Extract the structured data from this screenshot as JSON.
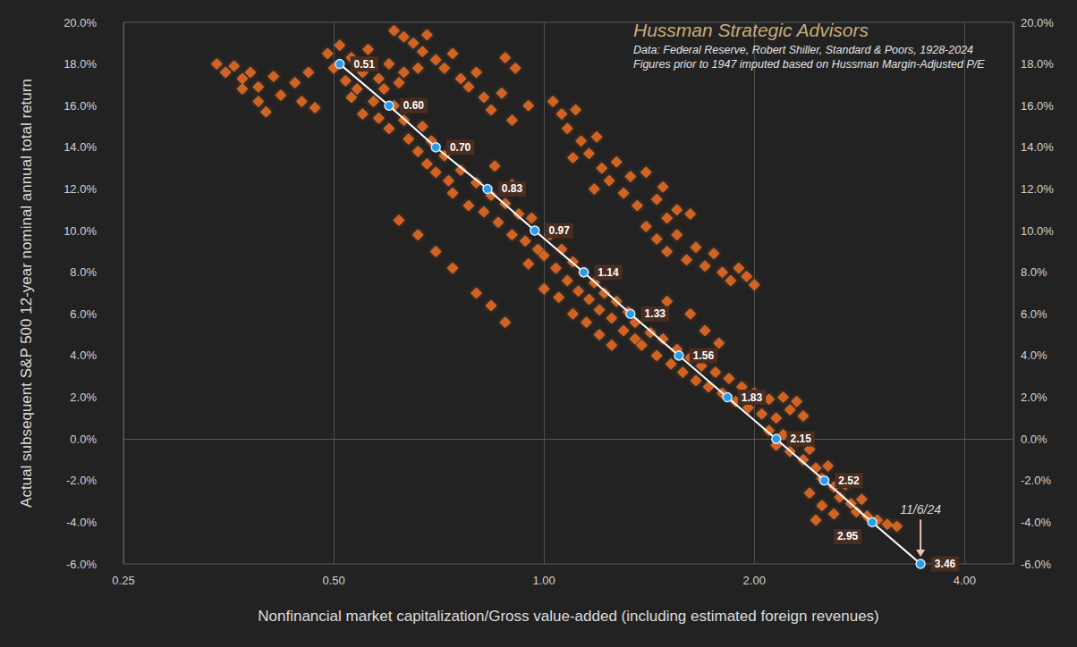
{
  "chart_data": {
    "type": "scatter",
    "title": "Hussman Strategic Advisors",
    "subtitle": [
      "Data: Federal Reserve, Robert Shiller, Standard & Poors, 1928-2024",
      "Figures prior to 1947 imputed based on Hussman Margin-Adjusted P/E"
    ],
    "x_label": "Nonfinancial market capitalization/Gross value-added (including estimated foreign revenues)",
    "y_label": "Actual subsequent S&P 500 12-year nominal annual total return",
    "log": "x",
    "grid": "x",
    "xlim": [
      0.25,
      4.7
    ],
    "xticks": [
      0.25,
      {
        "value": 0.5,
        "label": "0.50"
      },
      {
        "value": 1,
        "label": "1.00"
      },
      {
        "value": 2,
        "label": "2.00"
      },
      {
        "value": 4,
        "label": "4.00"
      }
    ],
    "ylim": [
      -6,
      20
    ],
    "yticks": [
      {
        "value": -6,
        "label": "-6.0%"
      },
      {
        "value": -4,
        "label": "-4.0%"
      },
      {
        "value": -2,
        "label": "-2.0%"
      },
      {
        "value": 0,
        "label": "0.0%"
      },
      {
        "value": 2,
        "label": "2.0%"
      },
      {
        "value": 4,
        "label": "4.0%"
      },
      {
        "value": 6,
        "label": "6.0%"
      },
      {
        "value": 8,
        "label": "8.0%"
      },
      {
        "value": 10,
        "label": "10.0%"
      },
      {
        "value": 12,
        "label": "12.0%"
      },
      {
        "value": 14,
        "label": "14.0%"
      },
      {
        "value": 16,
        "label": "16.0%"
      },
      {
        "value": 18,
        "label": "18.0%"
      },
      {
        "value": 20,
        "label": "20.0%"
      }
    ],
    "y2lim": [
      -6,
      20
    ],
    "y2ticks": [
      {
        "value": -6,
        "label": "-6.0%"
      },
      {
        "value": -4,
        "label": "-4.0%"
      },
      {
        "value": -2,
        "label": "-2.0%"
      },
      {
        "value": 0,
        "label": "0.0%"
      },
      {
        "value": 2,
        "label": "2.0%"
      },
      {
        "value": 4,
        "label": "4.0%"
      },
      {
        "value": 6,
        "label": "6.0%"
      },
      {
        "value": 8,
        "label": "8.0%"
      },
      {
        "value": 10,
        "label": "10.0%"
      },
      {
        "value": 12,
        "label": "12.0%"
      },
      {
        "value": 14,
        "label": "14.0%"
      },
      {
        "value": 16,
        "label": "16.0%"
      },
      {
        "value": 18,
        "label": "18.0%"
      },
      {
        "value": 20,
        "label": "20.0%"
      }
    ],
    "series": [
      {
        "type": "scatter",
        "color": "#f06a1e",
        "marker": "diamond",
        "x": [
          0.34,
          0.35,
          0.36,
          0.37,
          0.37,
          0.38,
          0.39,
          0.39,
          0.4,
          0.41,
          0.42,
          0.44,
          0.45,
          0.46,
          0.47,
          0.49,
          0.5,
          0.51,
          0.52,
          0.53,
          0.54,
          0.55,
          0.56,
          0.57,
          0.58,
          0.58,
          0.59,
          0.6,
          0.61,
          0.62,
          0.63,
          0.64,
          0.65,
          0.66,
          0.67,
          0.68,
          0.69,
          0.7,
          0.72,
          0.73,
          0.55,
          0.53,
          0.6,
          0.63,
          0.66,
          0.61,
          0.63,
          0.65,
          0.67,
          0.68,
          0.7,
          0.72,
          0.74,
          0.76,
          0.78,
          0.8,
          0.82,
          0.84,
          0.87,
          0.9,
          0.88,
          0.91,
          0.95,
          0.74,
          0.76,
          0.78,
          0.8,
          0.82,
          0.84,
          0.86,
          0.88,
          0.9,
          0.92,
          0.94,
          0.96,
          0.98,
          1.0,
          1.02,
          1.04,
          1.06,
          1.08,
          1.1,
          1.12,
          1.14,
          1.16,
          1.18,
          1.2,
          1.22,
          1.25,
          1.27,
          1.3,
          1.32,
          1.35,
          1.0,
          1.05,
          1.1,
          1.15,
          0.95,
          0.9,
          0.85,
          1.2,
          1.25,
          1.03,
          1.06,
          1.08,
          1.11,
          1.13,
          1.16,
          1.19,
          1.21,
          1.24,
          1.27,
          1.3,
          1.33,
          1.36,
          1.1,
          1.18,
          1.4,
          1.45,
          1.5,
          1.55,
          1.6,
          1.65,
          1.7,
          1.75,
          1.8,
          1.85,
          1.9,
          1.95,
          2.0,
          1.5,
          1.45,
          1.55,
          1.4,
          1.48,
          1.62,
          1.35,
          1.38,
          1.42,
          1.45,
          1.48,
          1.52,
          1.55,
          1.58,
          1.62,
          1.65,
          1.68,
          1.72,
          1.76,
          1.8,
          1.84,
          1.88,
          1.92,
          1.96,
          2.0,
          2.05,
          2.1,
          2.15,
          2.2,
          2.25,
          2.3,
          2.35,
          1.7,
          1.78,
          1.62,
          1.5,
          2.1,
          2.15,
          2.2,
          2.25,
          2.3,
          2.35,
          2.4,
          2.45,
          2.5,
          2.55,
          2.6,
          2.65,
          2.7,
          2.75,
          2.8,
          2.85,
          2.9,
          3.0,
          3.1,
          3.2,
          2.4,
          2.5,
          2.6,
          2.45,
          0.62,
          0.66,
          0.7,
          0.74,
          0.8,
          0.84,
          0.88
        ],
        "values": [
          18.0,
          17.6,
          17.9,
          17.3,
          16.8,
          17.6,
          16.9,
          16.2,
          15.7,
          17.4,
          16.5,
          17.1,
          16.2,
          17.6,
          15.9,
          18.5,
          17.8,
          18.9,
          17.2,
          18.3,
          16.8,
          17.6,
          18.7,
          16.2,
          17.3,
          15.4,
          16.8,
          14.9,
          16.0,
          17.1,
          15.3,
          14.4,
          16.1,
          13.8,
          15.0,
          13.2,
          14.3,
          12.8,
          13.6,
          12.4,
          15.6,
          16.4,
          18.0,
          17.6,
          17.8,
          19.6,
          19.3,
          19.0,
          18.6,
          19.4,
          18.2,
          17.8,
          18.5,
          17.3,
          16.9,
          17.6,
          16.4,
          15.8,
          16.6,
          15.3,
          18.3,
          17.8,
          16.0,
          11.8,
          12.9,
          11.2,
          12.3,
          10.9,
          11.7,
          10.4,
          11.3,
          9.8,
          10.8,
          9.5,
          10.6,
          9.1,
          8.8,
          9.8,
          8.2,
          9.1,
          7.6,
          8.5,
          7.1,
          8.0,
          6.7,
          7.5,
          6.2,
          7.0,
          5.8,
          6.6,
          5.2,
          6.1,
          4.8,
          7.2,
          6.8,
          6.0,
          5.6,
          8.4,
          12.2,
          13.1,
          5.0,
          4.5,
          16.2,
          15.6,
          14.9,
          15.8,
          14.3,
          13.7,
          14.5,
          13.0,
          12.4,
          13.3,
          11.8,
          12.6,
          11.2,
          13.5,
          12.0,
          10.2,
          9.6,
          9.0,
          9.8,
          8.6,
          9.2,
          8.3,
          8.9,
          8.0,
          7.6,
          8.2,
          7.8,
          7.4,
          10.6,
          11.5,
          11.0,
          12.8,
          12.1,
          10.8,
          5.6,
          4.5,
          5.1,
          4.0,
          4.8,
          3.6,
          4.3,
          3.2,
          3.9,
          2.8,
          3.5,
          2.5,
          3.2,
          2.2,
          2.9,
          1.8,
          2.5,
          1.5,
          2.2,
          1.2,
          1.9,
          1.0,
          2.0,
          1.4,
          1.8,
          1.1,
          5.2,
          4.6,
          6.0,
          6.6,
          0.4,
          -0.3,
          0.2,
          -0.6,
          -0.1,
          -1.0,
          -0.5,
          -1.4,
          -1.9,
          -1.3,
          -2.3,
          -2.8,
          -2.2,
          -3.1,
          -3.5,
          -2.9,
          -3.7,
          -3.9,
          -4.1,
          -4.2,
          -2.6,
          -3.2,
          -3.6,
          -3.9,
          10.5,
          9.8,
          9.0,
          8.2,
          7.0,
          6.4,
          5.6
        ]
      },
      {
        "type": "line",
        "color": "#ffffff",
        "marker": "circle",
        "line_style": "solid",
        "x": [
          0.51,
          0.6,
          0.7,
          0.83,
          0.97,
          1.14,
          1.33,
          1.56,
          1.83,
          2.15,
          2.52,
          2.95,
          3.46
        ],
        "values": [
          18,
          16,
          14,
          12,
          10,
          8,
          6,
          4,
          2,
          0,
          -2,
          -4,
          -6
        ],
        "labels": [
          "0.51",
          "0.60",
          "0.70",
          "0.83",
          "0.97",
          "1.14",
          "1.33",
          "1.56",
          "1.83",
          "2.15",
          "2.52",
          "2.95",
          "3.46"
        ]
      }
    ],
    "annotations": [
      {
        "text": "11/6/24",
        "x": 3.46,
        "y": -3.4,
        "arrow_to": [
          3.46,
          -6
        ]
      }
    ]
  }
}
